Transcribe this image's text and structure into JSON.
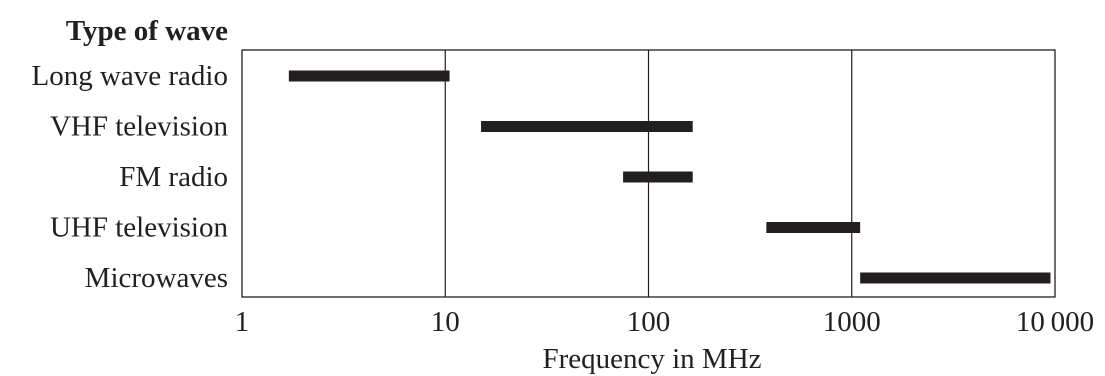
{
  "chart_data": {
    "type": "range-bar",
    "title": "",
    "category_axis_title": "Type of wave",
    "xlabel": "Frequency in MHz",
    "x_scale": "log",
    "xlim": [
      1,
      10000
    ],
    "x_ticks": [
      1,
      10,
      100,
      1000,
      10000
    ],
    "x_tick_labels": [
      "1",
      "10",
      "100",
      "1000",
      "10 000"
    ],
    "vertical_gridlines_at": [
      10,
      100,
      1000
    ],
    "bar_color": "#231f20",
    "categories": [
      "Long wave radio",
      "VHF television",
      "FM radio",
      "UHF television",
      "Microwaves"
    ],
    "ranges": [
      {
        "label": "Long wave radio",
        "low": 1.7,
        "high": 10.5
      },
      {
        "label": "VHF television",
        "low": 15,
        "high": 165
      },
      {
        "label": "FM radio",
        "low": 75,
        "high": 165
      },
      {
        "label": "UHF television",
        "low": 380,
        "high": 1100
      },
      {
        "label": "Microwaves",
        "low": 1100,
        "high": 9500
      }
    ]
  }
}
